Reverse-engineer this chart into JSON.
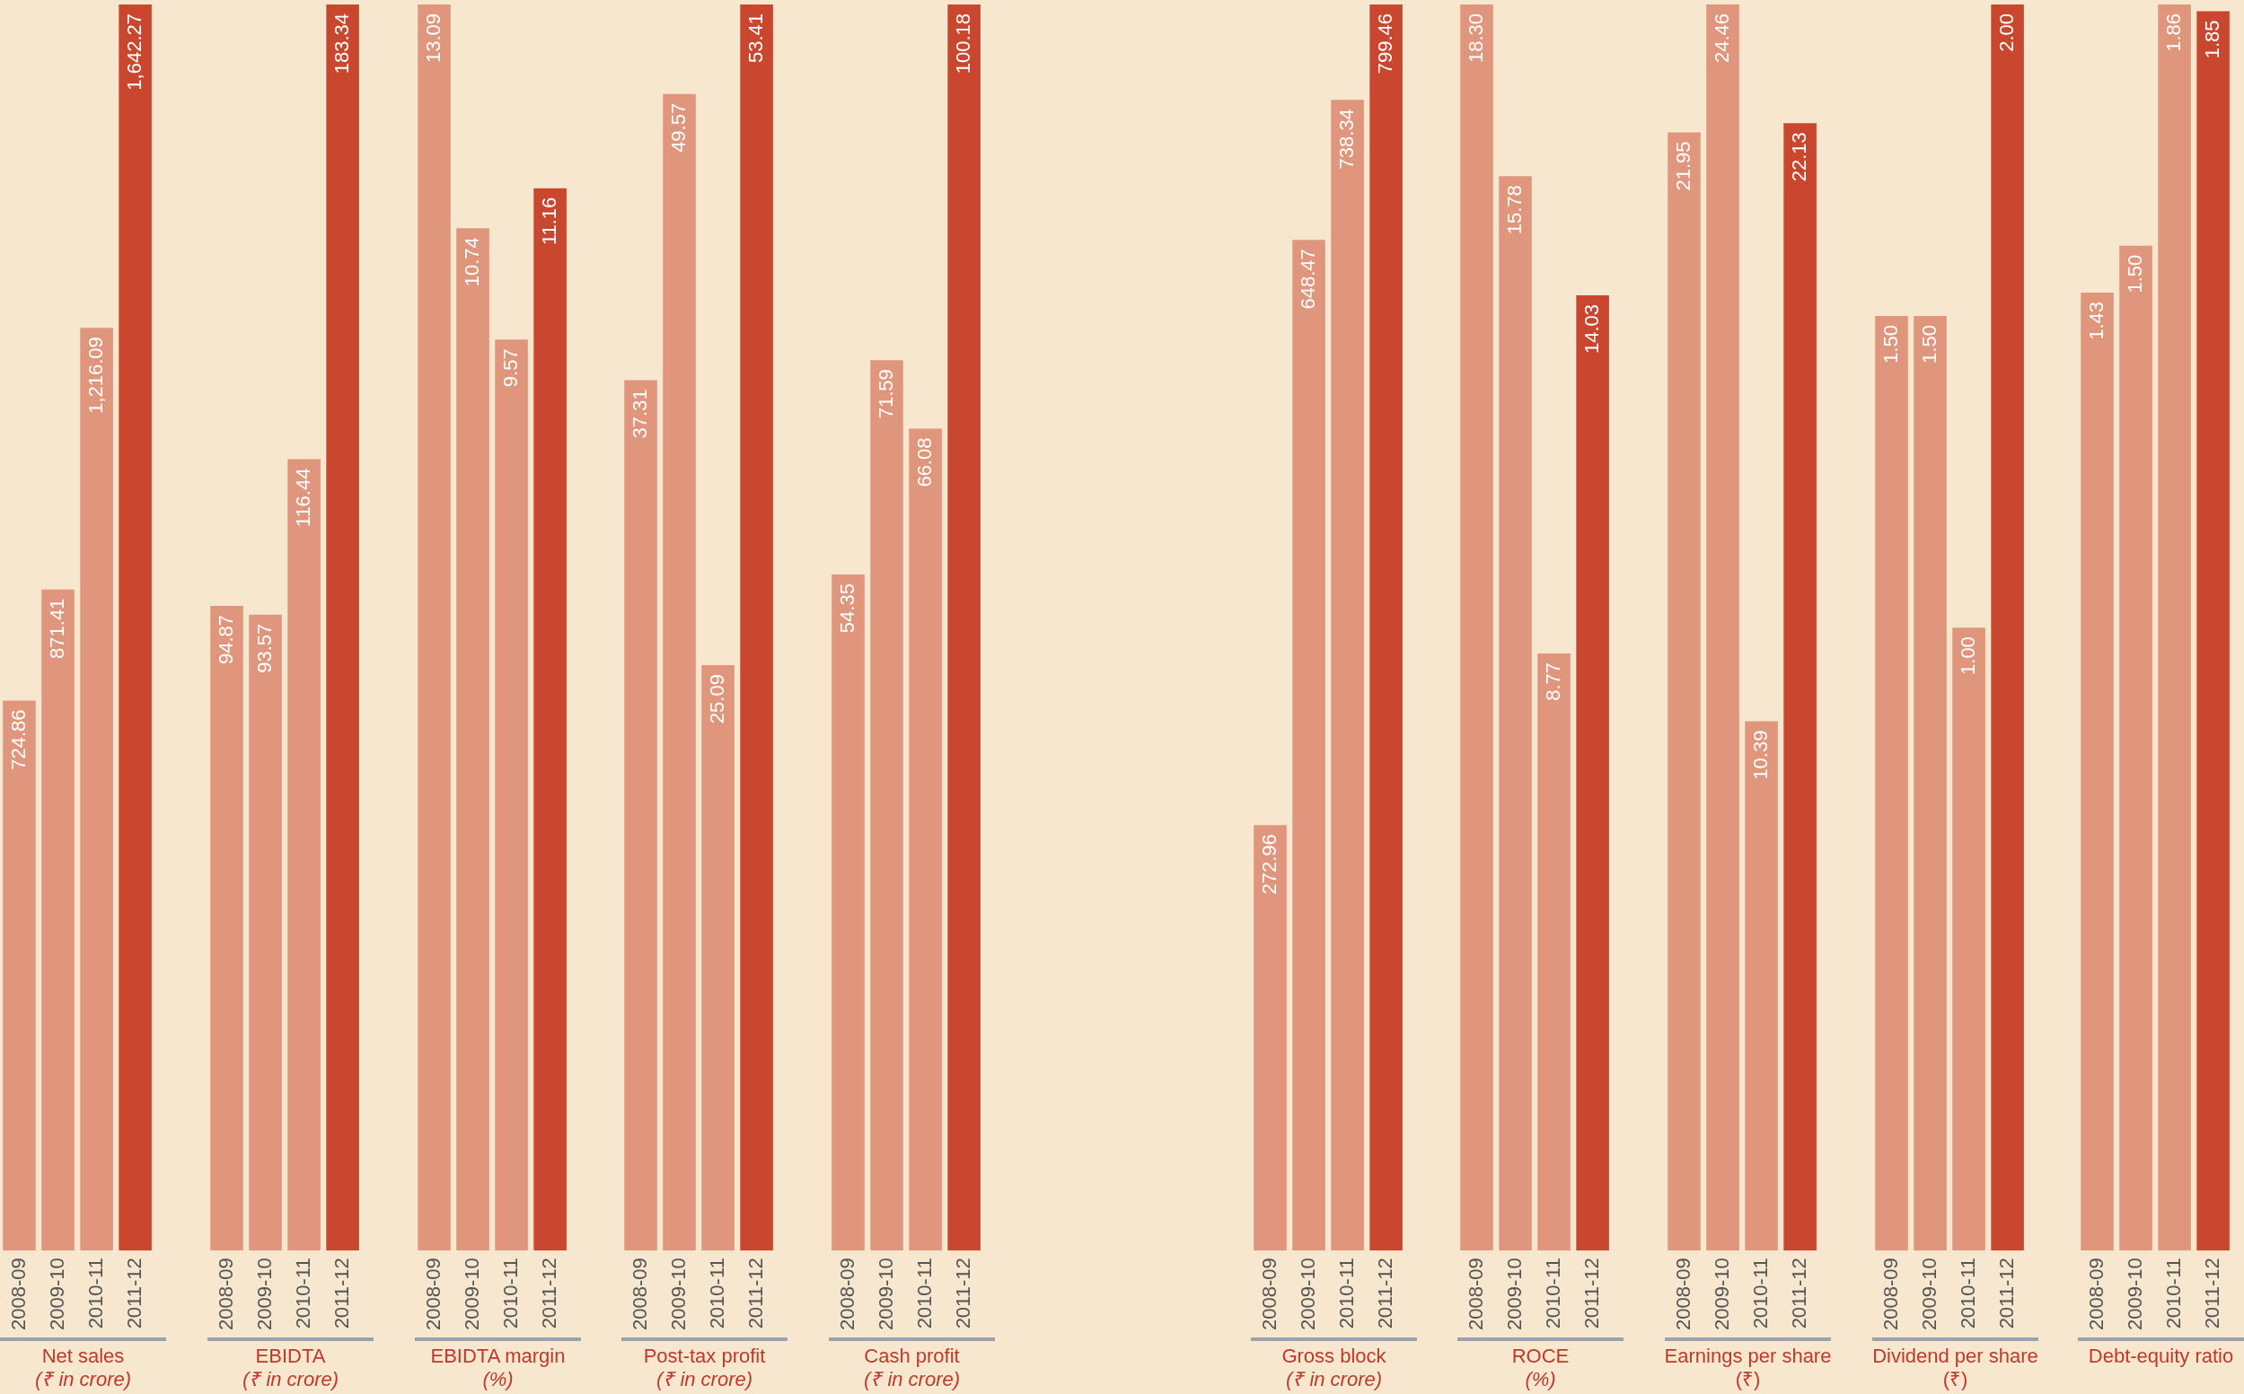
{
  "chart_data": [
    {
      "type": "bar",
      "title": "Net sales",
      "subtitle": "(₹ in crore)",
      "categories": [
        "2008-09",
        "2009-10",
        "2010-11",
        "2011-12"
      ],
      "values": [
        724.86,
        871.41,
        1216.09,
        1642.27
      ],
      "value_labels": [
        "724.86",
        "871.41",
        "1,216.09",
        "1,642.27"
      ],
      "colors": [
        "#e0967c",
        "#e0967c",
        "#e0967c",
        "#c9472f"
      ],
      "grid": false,
      "legend": false,
      "tick_labels": "x"
    },
    {
      "type": "bar",
      "title": "EBIDTA",
      "subtitle": "(₹ in crore)",
      "categories": [
        "2008-09",
        "2009-10",
        "2010-11",
        "2011-12"
      ],
      "values": [
        94.87,
        93.57,
        116.44,
        183.34
      ],
      "value_labels": [
        "94.87",
        "93.57",
        "116.44",
        "183.34"
      ],
      "colors": [
        "#e0967c",
        "#e0967c",
        "#e0967c",
        "#c9472f"
      ],
      "grid": false,
      "legend": false,
      "tick_labels": "x"
    },
    {
      "type": "bar",
      "title": "EBIDTA margin",
      "subtitle": "(%)",
      "categories": [
        "2008-09",
        "2009-10",
        "2010-11",
        "2011-12"
      ],
      "values": [
        13.09,
        10.74,
        9.57,
        11.16
      ],
      "value_labels": [
        "13.09",
        "10.74",
        "9.57",
        "11.16"
      ],
      "colors": [
        "#e0967c",
        "#e0967c",
        "#e0967c",
        "#c9472f"
      ],
      "grid": false,
      "legend": false,
      "tick_labels": "x"
    },
    {
      "type": "bar",
      "title": "Post-tax profit",
      "subtitle": "(₹ in crore)",
      "categories": [
        "2008-09",
        "2009-10",
        "2010-11",
        "2011-12"
      ],
      "values": [
        37.31,
        49.57,
        25.09,
        53.41
      ],
      "value_labels": [
        "37.31",
        "49.57",
        "25.09",
        "53.41"
      ],
      "colors": [
        "#e0967c",
        "#e0967c",
        "#e0967c",
        "#c9472f"
      ],
      "grid": false,
      "legend": false,
      "tick_labels": "x"
    },
    {
      "type": "bar",
      "title": "Cash profit",
      "subtitle": "(₹ in crore)",
      "categories": [
        "2008-09",
        "2009-10",
        "2010-11",
        "2011-12"
      ],
      "values": [
        54.35,
        71.59,
        66.08,
        100.18
      ],
      "value_labels": [
        "54.35",
        "71.59",
        "66.08",
        "100.18"
      ],
      "colors": [
        "#e0967c",
        "#e0967c",
        "#e0967c",
        "#c9472f"
      ],
      "grid": false,
      "legend": false,
      "tick_labels": "x"
    },
    {
      "type": "bar",
      "title": "Gross block",
      "subtitle": "(₹ in crore)",
      "categories": [
        "2008-09",
        "2009-10",
        "2010-11",
        "2011-12"
      ],
      "values": [
        272.96,
        648.47,
        738.34,
        799.46
      ],
      "value_labels": [
        "272.96",
        "648.47",
        "738.34",
        "799.46"
      ],
      "colors": [
        "#e0967c",
        "#e0967c",
        "#e0967c",
        "#c9472f"
      ],
      "grid": false,
      "legend": false,
      "tick_labels": "x"
    },
    {
      "type": "bar",
      "title": "ROCE",
      "subtitle": "(%)",
      "categories": [
        "2008-09",
        "2009-10",
        "2010-11",
        "2011-12"
      ],
      "values": [
        18.3,
        15.78,
        8.77,
        14.03
      ],
      "value_labels": [
        "18.30",
        "15.78",
        "8.77",
        "14.03"
      ],
      "colors": [
        "#e0967c",
        "#e0967c",
        "#e0967c",
        "#c9472f"
      ],
      "grid": false,
      "legend": false,
      "tick_labels": "x"
    },
    {
      "type": "bar",
      "title": "Earnings per share (₹)",
      "categories": [
        "2008-09",
        "2009-10",
        "2010-11",
        "2011-12"
      ],
      "values": [
        21.95,
        24.46,
        10.39,
        22.13
      ],
      "value_labels": [
        "21.95",
        "24.46",
        "10.39",
        "22.13"
      ],
      "colors": [
        "#e0967c",
        "#e0967c",
        "#e0967c",
        "#c9472f"
      ],
      "grid": false,
      "legend": false,
      "tick_labels": "x"
    },
    {
      "type": "bar",
      "title": "Dividend per share (₹)",
      "categories": [
        "2008-09",
        "2009-10",
        "2010-11",
        "2011-12"
      ],
      "values": [
        1.5,
        1.5,
        1.0,
        2.0
      ],
      "value_labels": [
        "1.50",
        "1.50",
        "1.00",
        "2.00"
      ],
      "colors": [
        "#e0967c",
        "#e0967c",
        "#e0967c",
        "#c9472f"
      ],
      "grid": false,
      "legend": false,
      "tick_labels": "x"
    },
    {
      "type": "bar",
      "title": "Debt-equity ratio",
      "categories": [
        "2008-09",
        "2009-10",
        "2010-11",
        "2011-12"
      ],
      "values": [
        1.43,
        1.5,
        1.86,
        1.85
      ],
      "value_labels": [
        "1.43",
        "1.50",
        "1.86",
        "1.85"
      ],
      "colors": [
        "#e0967c",
        "#e0967c",
        "#e0967c",
        "#c9472f"
      ],
      "grid": false,
      "legend": false,
      "tick_labels": "x"
    }
  ]
}
